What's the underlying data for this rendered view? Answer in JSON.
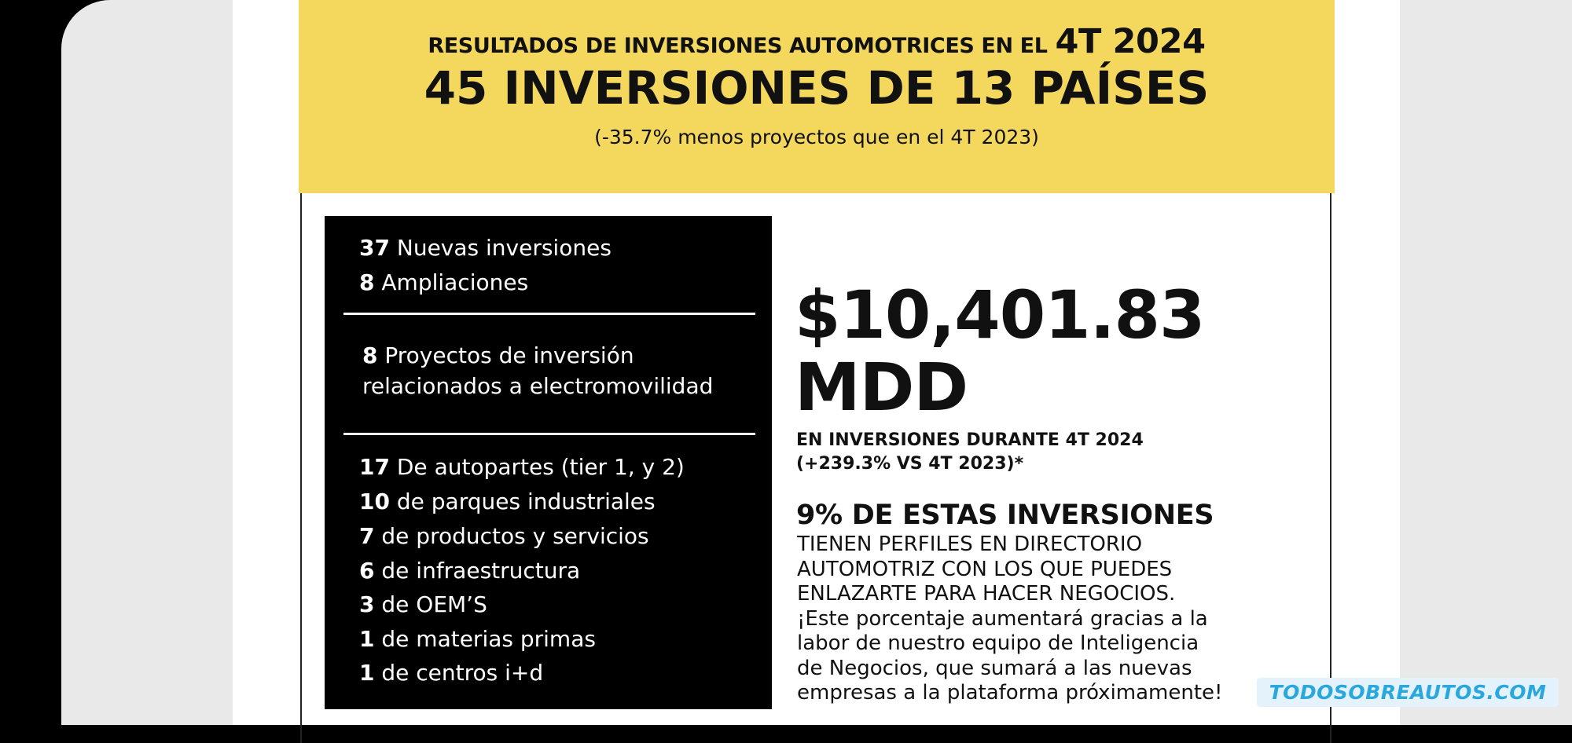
{
  "banner": {
    "line1_prefix": "RESULTADOS DE INVERSIONES AUTOMOTRICES EN EL",
    "line1_emphasis": "4T 2024",
    "line2": "45 INVERSIONES DE 13 PAÍSES",
    "line3": "(-35.7% menos proyectos que en el 4T 2023)"
  },
  "breakdown": {
    "group1": [
      {
        "count": "37",
        "label": "Nuevas inversiones"
      },
      {
        "count": "8",
        "label": "Ampliaciones"
      }
    ],
    "group2": {
      "count": "8",
      "label_line1": "Proyectos de inversión",
      "label_line2": "relacionados a electromovilidad"
    },
    "group3": [
      {
        "count": "17",
        "label": "De autopartes (tier 1, y 2)"
      },
      {
        "count": "10",
        "label": "de parques industriales"
      },
      {
        "count": "7",
        "label": "de productos y servicios"
      },
      {
        "count": "6",
        "label": "de infraestructura"
      },
      {
        "count": "3",
        "label": "de OEM’S"
      },
      {
        "count": "1",
        "label": "de materias primas"
      },
      {
        "count": "1",
        "label": "de centros i+d"
      }
    ]
  },
  "summary": {
    "amount": "$10,401.83",
    "unit": "MDD",
    "caption_line1": "EN INVERSIONES DURANTE 4T 2024",
    "caption_line2": "(+239.3% VS 4T 2023)*",
    "highlight": "9% DE ESTAS INVERSIONES",
    "paragraph": [
      "TIENEN PERFILES EN DIRECTORIO",
      "AUTOMOTRIZ CON LOS QUE PUEDES",
      "ENLAZARTE PARA HACER NEGOCIOS.",
      "¡Este porcentaje aumentará gracias a la",
      "labor de nuestro equipo de Inteligencia",
      "de Negocios, que sumará a las nuevas",
      "empresas a la plataforma próximamente!"
    ]
  },
  "watermark": "TODOSOBREAUTOS.COM"
}
